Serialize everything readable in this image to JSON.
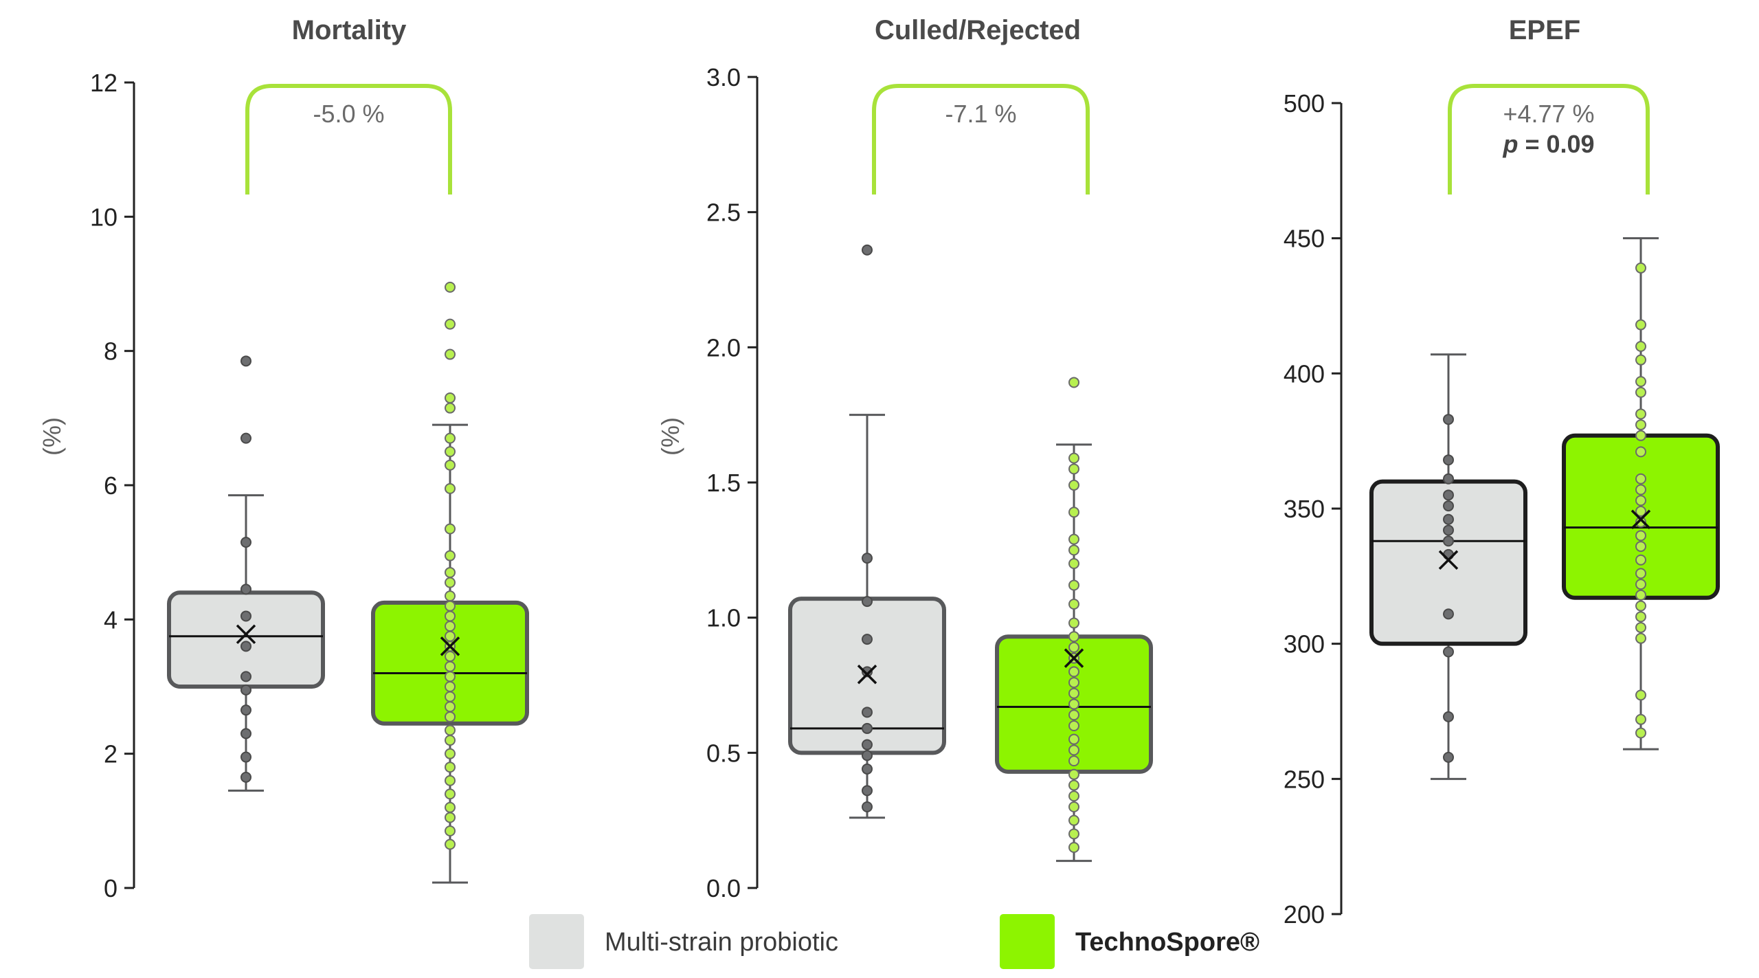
{
  "chart_data": [
    {
      "type": "box",
      "title": "Mortality",
      "ylabel": "(%)",
      "ylim": [
        0,
        12
      ],
      "yticks": [
        0,
        2,
        4,
        6,
        8,
        10,
        12
      ],
      "tick_labels": [
        "0",
        "2",
        "4",
        "6",
        "8",
        "10",
        "12"
      ],
      "annotation": [
        "-5.0 %"
      ],
      "series": [
        {
          "name": "Multi-strain probiotic",
          "whisker_low": 1.45,
          "q1": 3.0,
          "median": 3.75,
          "q3": 4.4,
          "whisker_high": 5.85,
          "mean": 3.78,
          "points": [
            7.85,
            6.7,
            5.15,
            4.45,
            4.05,
            3.6,
            3.15,
            2.95,
            2.65,
            2.3,
            1.95,
            1.65
          ]
        },
        {
          "name": "TechnoSpore®",
          "whisker_low": 0.08,
          "q1": 2.45,
          "median": 3.2,
          "q3": 4.25,
          "whisker_high": 6.9,
          "mean": 3.6,
          "points": [
            8.95,
            8.4,
            7.95,
            7.3,
            7.15,
            6.7,
            6.5,
            6.3,
            5.95,
            5.35,
            4.95,
            4.7,
            4.55,
            4.35,
            4.2,
            4.05,
            3.9,
            3.75,
            3.6,
            3.45,
            3.3,
            3.15,
            3.0,
            2.85,
            2.7,
            2.55,
            2.35,
            2.2,
            2.0,
            1.8,
            1.6,
            1.4,
            1.2,
            1.05,
            0.85,
            0.65
          ]
        }
      ]
    },
    {
      "type": "box",
      "title": "Culled/Rejected",
      "ylabel": "(%)",
      "ylim": [
        0,
        3
      ],
      "yticks": [
        0,
        0.5,
        1,
        1.5,
        2,
        2.5,
        3
      ],
      "tick_labels": [
        "0.0",
        "0.5",
        "1.0",
        "1.5",
        "2.0",
        "2.5",
        "3.0"
      ],
      "annotation": [
        "-7.1 %"
      ],
      "series": [
        {
          "name": "Multi-strain probiotic",
          "whisker_low": 0.26,
          "q1": 0.5,
          "median": 0.59,
          "q3": 1.07,
          "whisker_high": 1.75,
          "mean": 0.79,
          "points": [
            2.36,
            1.22,
            1.06,
            0.92,
            0.8,
            0.65,
            0.59,
            0.53,
            0.49,
            0.44,
            0.36,
            0.3
          ]
        },
        {
          "name": "TechnoSpore®",
          "whisker_low": 0.1,
          "q1": 0.43,
          "median": 0.67,
          "q3": 0.93,
          "whisker_high": 1.64,
          "mean": 0.85,
          "points": [
            1.87,
            1.59,
            1.55,
            1.49,
            1.39,
            1.29,
            1.25,
            1.2,
            1.12,
            1.05,
            0.98,
            0.93,
            0.89,
            0.85,
            0.8,
            0.76,
            0.72,
            0.68,
            0.64,
            0.6,
            0.55,
            0.51,
            0.47,
            0.42,
            0.38,
            0.34,
            0.3,
            0.25,
            0.2,
            0.15
          ]
        }
      ]
    },
    {
      "type": "box",
      "title": "EPEF",
      "ylabel": "",
      "ylim": [
        200,
        500
      ],
      "yticks": [
        200,
        250,
        300,
        350,
        400,
        450,
        500
      ],
      "tick_labels": [
        "200",
        "250",
        "300",
        "350",
        "400",
        "450",
        "500"
      ],
      "annotation": [
        "+4.77 %",
        "p = 0.09"
      ],
      "series": [
        {
          "name": "Multi-strain probiotic",
          "whisker_low": 250,
          "q1": 300,
          "median": 338,
          "q3": 360,
          "whisker_high": 407,
          "mean": 331,
          "points": [
            383,
            368,
            361,
            355,
            351,
            346,
            342,
            338,
            333,
            311,
            297,
            273,
            258
          ]
        },
        {
          "name": "TechnoSpore®",
          "whisker_low": 261,
          "q1": 317,
          "median": 343,
          "q3": 377,
          "whisker_high": 450,
          "mean": 346,
          "points": [
            439,
            418,
            410,
            405,
            397,
            393,
            385,
            381,
            377,
            371,
            361,
            357,
            353,
            349,
            345,
            340,
            336,
            331,
            326,
            322,
            318,
            314,
            310,
            306,
            302,
            281,
            272,
            267
          ]
        }
      ]
    }
  ],
  "legend": {
    "items": [
      {
        "label": "Multi-strain probiotic",
        "color": "#dfe1e0"
      },
      {
        "label": "TechnoSpore®",
        "color": "#8df400"
      }
    ]
  },
  "colors": {
    "box_grey": "#dfe1e0",
    "box_green": "#8df400",
    "bracket": "#a8e23a",
    "outline_grey": "#58595b",
    "outline_dark": "#1e1e1e",
    "point_grey": "#6d6e70",
    "point_green": "#b8f050"
  }
}
